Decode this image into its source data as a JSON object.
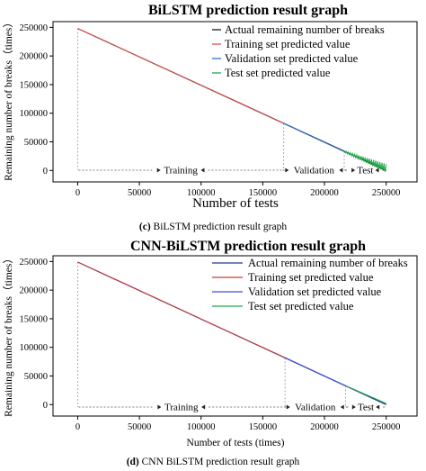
{
  "panels": [
    {
      "caption_letter": "(c)",
      "caption_text": "BiLSTM prediction result graph"
    },
    {
      "caption_letter": "(d)",
      "caption_text": "CNN BiLSTM prediction result graph"
    }
  ],
  "chart_data": [
    {
      "type": "line",
      "title": "BiLSTM prediction result graph",
      "xlabel": "Number of tests",
      "ylabel": "Remaining number of breaks（times）",
      "xlim": [
        -20000,
        275000
      ],
      "ylim": [
        -20000,
        260000
      ],
      "xticks": [
        0,
        50000,
        100000,
        150000,
        200000,
        250000
      ],
      "yticks": [
        0,
        50000,
        100000,
        150000,
        200000,
        250000
      ],
      "xtick_labels": [
        "0",
        "50000",
        "100000",
        "150000",
        "200000",
        "250000"
      ],
      "ytick_labels": [
        "0",
        "50000",
        "100000",
        "150000",
        "200000",
        "250000"
      ],
      "legend_position": "top-right",
      "colors": {
        "actual": "#1a1a1a",
        "training": "#d9534f",
        "validation": "#2f6fd6",
        "test": "#1fa84a"
      },
      "series": [
        {
          "name": "Actual remaining number of breaks",
          "x": [
            0,
            250000
          ],
          "y": [
            248000,
            0
          ]
        },
        {
          "name": "Training set predicted value",
          "x": [
            0,
            167000
          ],
          "y": [
            248000,
            82000
          ]
        },
        {
          "name": "Validation  set predicted value",
          "x": [
            167000,
            216000
          ],
          "y": [
            82000,
            33000
          ]
        },
        {
          "name": "Test set predicted value",
          "x": [
            216000,
            250000
          ],
          "y": [
            33000,
            4000
          ]
        }
      ],
      "segments": [
        {
          "label": "Training",
          "x_start": 0,
          "x_end": 167000
        },
        {
          "label": "Validation",
          "x_start": 167000,
          "x_end": 216000
        },
        {
          "label": "Test",
          "x_start": 216000,
          "x_end": 250000
        }
      ]
    },
    {
      "type": "line",
      "title": "CNN-BiLSTM prediction result graph",
      "xlabel": "Number of tests (times)",
      "ylabel": "Remaining number of breaks（times）",
      "xlim": [
        -20000,
        275000
      ],
      "ylim": [
        -20000,
        260000
      ],
      "xticks": [
        0,
        50000,
        100000,
        150000,
        200000,
        250000
      ],
      "yticks": [
        0,
        50000,
        100000,
        150000,
        200000,
        250000
      ],
      "xtick_labels": [
        "0",
        "50000",
        "100000",
        "150000",
        "200000",
        "250000"
      ],
      "ytick_labels": [
        "0",
        "50000",
        "100000",
        "150000",
        "200000",
        "250000"
      ],
      "legend_position": "top-right",
      "colors": {
        "actual": "#1f3a8f",
        "training": "#cc3b3b",
        "validation": "#3b4fd6",
        "test": "#1fa84a"
      },
      "series": [
        {
          "name": "Actual remaining number of breaks",
          "x": [
            0,
            250000
          ],
          "y": [
            249000,
            0
          ]
        },
        {
          "name": "Training set predicted value",
          "x": [
            0,
            168000
          ],
          "y": [
            249000,
            82000
          ]
        },
        {
          "name": "Validation  set predicted value",
          "x": [
            168000,
            217000
          ],
          "y": [
            82000,
            33000
          ]
        },
        {
          "name": "Test set predicted value",
          "x": [
            217000,
            250000
          ],
          "y": [
            33000,
            2000
          ]
        }
      ],
      "segments": [
        {
          "label": "Training",
          "x_start": 0,
          "x_end": 168000
        },
        {
          "label": "Validation",
          "x_start": 168000,
          "x_end": 217000
        },
        {
          "label": "Test",
          "x_start": 217000,
          "x_end": 250000
        }
      ]
    }
  ]
}
